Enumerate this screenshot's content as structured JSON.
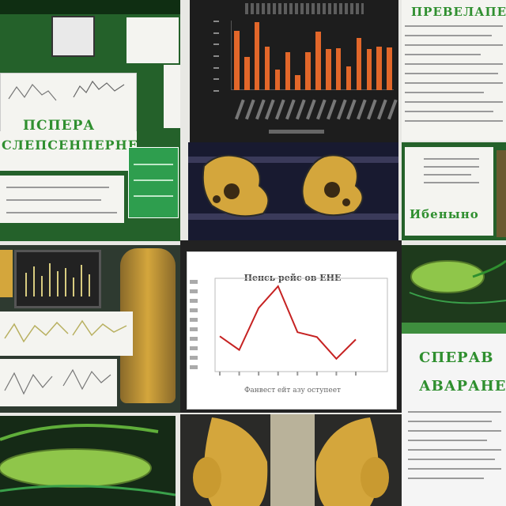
{
  "tiles": {
    "top_left_heading": "ПСПЕРА",
    "top_left_subheading": "СЛЕПСЕНПЕРНЕ",
    "top_right_heading": "ПРЕВЕЛАПЕН",
    "right_mid_heading": "Ибеныно",
    "bottom_right_heading1": "СПЕРАВ",
    "bottom_right_heading2": "АВАРАНЕ"
  },
  "center_chart": {
    "title": "Пенсь рейс ов ЕНЕ",
    "xlabel": "Фанвест ейт азу оступеет"
  },
  "colors": {
    "accent_orange": "#e2672a",
    "line_red": "#c62222",
    "heading_green": "#2f8f2f",
    "bone_yellow": "#d4a63c",
    "tissue_green": "#8fc64a"
  },
  "chart_data": [
    {
      "type": "bar",
      "categories": [
        "",
        "",
        "",
        "",
        "",
        "",
        "",
        "",
        "",
        "",
        "",
        "",
        "",
        "",
        "",
        ""
      ],
      "values": [
        68,
        38,
        78,
        50,
        24,
        44,
        17,
        44,
        67,
        47,
        48,
        27,
        60,
        47,
        50,
        49
      ],
      "ylim": [
        0,
        80
      ],
      "grid": false
    },
    {
      "type": "line",
      "title": "Пенсь рейс ов ЕНЕ",
      "xlabel": "Фанвест ейт азу оступеет",
      "x": [
        1,
        2,
        3,
        4,
        5,
        6,
        7,
        8
      ],
      "series": [
        {
          "values": [
            36,
            19,
            71,
            98,
            41,
            35,
            8,
            32
          ]
        }
      ],
      "ylim": [
        0,
        100
      ]
    }
  ]
}
